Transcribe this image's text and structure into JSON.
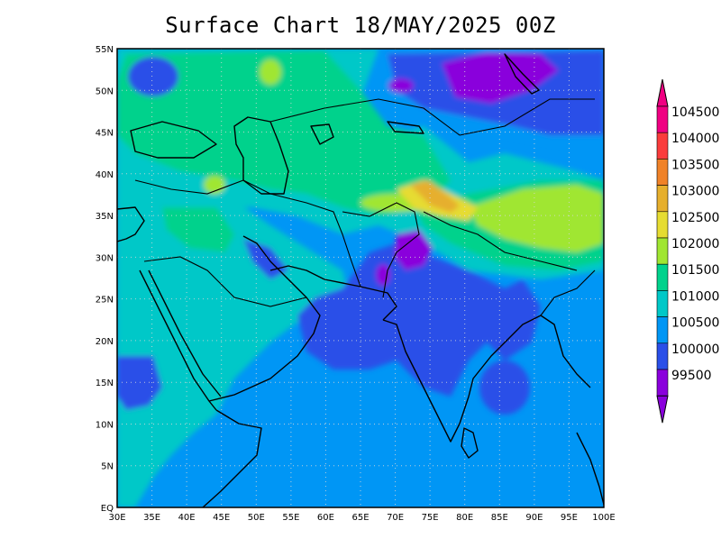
{
  "title": "Surface Chart 18/MAY/2025 00Z",
  "map": {
    "lon_range": [
      30,
      100
    ],
    "lat_range": [
      0,
      55
    ],
    "lon_ticks": [
      "30E",
      "35E",
      "40E",
      "45E",
      "50E",
      "55E",
      "60E",
      "65E",
      "70E",
      "75E",
      "80E",
      "85E",
      "90E",
      "95E",
      "100E"
    ],
    "lat_ticks": [
      "EQ",
      "5N",
      "10N",
      "15N",
      "20N",
      "25N",
      "30N",
      "35N",
      "40N",
      "45N",
      "50N",
      "55N"
    ],
    "grid": true,
    "background_field": "surface pressure",
    "colors": {
      "c99500": "#8a00dc",
      "c100000": "#2a4fe8",
      "c100500": "#0096f5",
      "c101000": "#00c8c8",
      "c101500": "#00d28c",
      "c102000": "#a0e632",
      "c102500": "#e6dc32",
      "c103000": "#e6af2d",
      "c103500": "#f08228",
      "c104000": "#fa3c3c",
      "c104500": "#f00082"
    }
  },
  "colorbar": {
    "labels": [
      "104500",
      "104000",
      "103500",
      "103000",
      "102500",
      "102000",
      "101500",
      "101000",
      "100500",
      "100000",
      "99500"
    ],
    "colors": [
      "#f00082",
      "#fa3c3c",
      "#f08228",
      "#e6af2d",
      "#e6dc32",
      "#a0e632",
      "#00d28c",
      "#00c8c8",
      "#0096f5",
      "#2a4fe8",
      "#8a00dc"
    ]
  }
}
